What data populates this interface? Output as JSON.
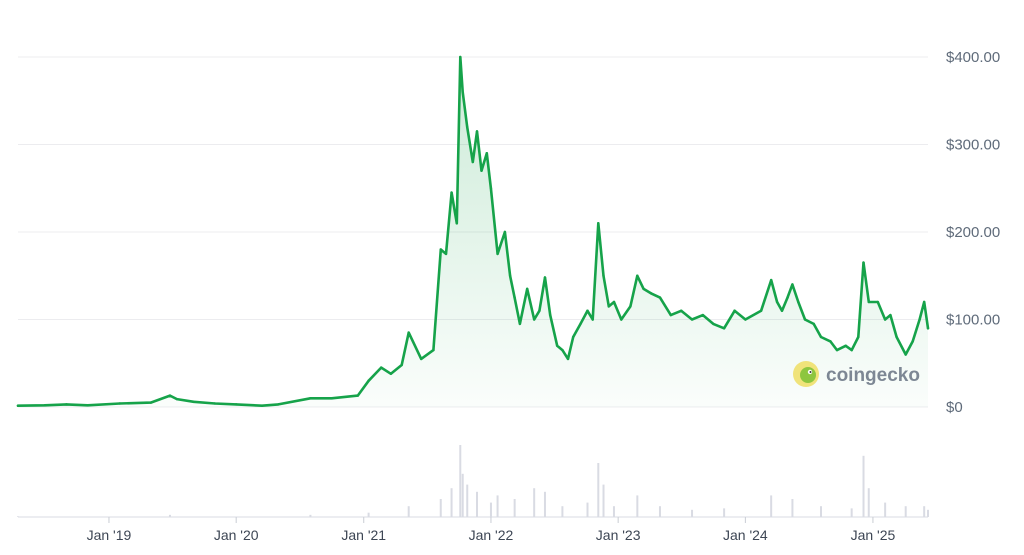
{
  "chart_data": {
    "type": "area",
    "y_axis": {
      "ticks": [
        {
          "value": 0,
          "label": "$0"
        },
        {
          "value": 100,
          "label": "$100.00"
        },
        {
          "value": 200,
          "label": "$200.00"
        },
        {
          "value": 300,
          "label": "$300.00"
        },
        {
          "value": 400,
          "label": "$400.00"
        }
      ],
      "position": "right",
      "ylim": [
        0,
        400
      ]
    },
    "x_axis": {
      "ticks": [
        {
          "date": "2019-01-01",
          "label": "Jan '19"
        },
        {
          "date": "2020-01-01",
          "label": "Jan '20"
        },
        {
          "date": "2021-01-01",
          "label": "Jan '21"
        },
        {
          "date": "2022-01-01",
          "label": "Jan '22"
        },
        {
          "date": "2023-01-01",
          "label": "Jan '23"
        },
        {
          "date": "2024-01-01",
          "label": "Jan '24"
        },
        {
          "date": "2025-01-01",
          "label": "Jan '25"
        }
      ],
      "xlim": [
        "2018-04-15",
        "2025-06-08"
      ]
    },
    "grid": true,
    "legend": "none",
    "price_series": {
      "color": "#16a34a",
      "points": [
        [
          "2018-04-15",
          1.5
        ],
        [
          "2018-07-01",
          2
        ],
        [
          "2018-09-01",
          3
        ],
        [
          "2018-11-01",
          2
        ],
        [
          "2019-02-01",
          4
        ],
        [
          "2019-05-01",
          5
        ],
        [
          "2019-06-25",
          13
        ],
        [
          "2019-07-15",
          9
        ],
        [
          "2019-09-01",
          6
        ],
        [
          "2019-11-01",
          4
        ],
        [
          "2020-01-01",
          3
        ],
        [
          "2020-03-15",
          1.5
        ],
        [
          "2020-05-01",
          3
        ],
        [
          "2020-08-01",
          10
        ],
        [
          "2020-10-01",
          10
        ],
        [
          "2020-12-15",
          13
        ],
        [
          "2021-01-15",
          30
        ],
        [
          "2021-02-20",
          45
        ],
        [
          "2021-03-20",
          38
        ],
        [
          "2021-04-20",
          48
        ],
        [
          "2021-05-10",
          85
        ],
        [
          "2021-06-15",
          55
        ],
        [
          "2021-07-20",
          65
        ],
        [
          "2021-08-10",
          180
        ],
        [
          "2021-08-25",
          175
        ],
        [
          "2021-09-10",
          245
        ],
        [
          "2021-09-25",
          210
        ],
        [
          "2021-10-05",
          400
        ],
        [
          "2021-10-12",
          360
        ],
        [
          "2021-10-25",
          320
        ],
        [
          "2021-11-10",
          280
        ],
        [
          "2021-11-22",
          315
        ],
        [
          "2021-12-05",
          270
        ],
        [
          "2021-12-20",
          290
        ],
        [
          "2022-01-01",
          250
        ],
        [
          "2022-01-20",
          175
        ],
        [
          "2022-02-10",
          200
        ],
        [
          "2022-02-25",
          150
        ],
        [
          "2022-03-10",
          125
        ],
        [
          "2022-03-25",
          95
        ],
        [
          "2022-04-15",
          135
        ],
        [
          "2022-05-05",
          100
        ],
        [
          "2022-05-20",
          110
        ],
        [
          "2022-06-05",
          148
        ],
        [
          "2022-06-20",
          105
        ],
        [
          "2022-07-10",
          70
        ],
        [
          "2022-07-25",
          65
        ],
        [
          "2022-08-10",
          55
        ],
        [
          "2022-08-25",
          80
        ],
        [
          "2022-09-15",
          95
        ],
        [
          "2022-10-05",
          110
        ],
        [
          "2022-10-20",
          100
        ],
        [
          "2022-11-05",
          210
        ],
        [
          "2022-11-20",
          150
        ],
        [
          "2022-12-05",
          115
        ],
        [
          "2022-12-20",
          120
        ],
        [
          "2023-01-10",
          100
        ],
        [
          "2023-02-05",
          115
        ],
        [
          "2023-02-25",
          150
        ],
        [
          "2023-03-15",
          135
        ],
        [
          "2023-04-05",
          130
        ],
        [
          "2023-05-01",
          125
        ],
        [
          "2023-06-01",
          105
        ],
        [
          "2023-07-01",
          110
        ],
        [
          "2023-08-01",
          100
        ],
        [
          "2023-09-01",
          105
        ],
        [
          "2023-10-01",
          95
        ],
        [
          "2023-11-01",
          90
        ],
        [
          "2023-12-01",
          110
        ],
        [
          "2024-01-01",
          100
        ],
        [
          "2024-02-15",
          110
        ],
        [
          "2024-03-15",
          145
        ],
        [
          "2024-04-01",
          120
        ],
        [
          "2024-04-15",
          110
        ],
        [
          "2024-05-01",
          125
        ],
        [
          "2024-05-15",
          140
        ],
        [
          "2024-06-01",
          120
        ],
        [
          "2024-06-20",
          100
        ],
        [
          "2024-07-15",
          95
        ],
        [
          "2024-08-05",
          80
        ],
        [
          "2024-09-01",
          75
        ],
        [
          "2024-09-20",
          65
        ],
        [
          "2024-10-15",
          70
        ],
        [
          "2024-11-01",
          65
        ],
        [
          "2024-11-20",
          80
        ],
        [
          "2024-12-05",
          165
        ],
        [
          "2024-12-20",
          120
        ],
        [
          "2025-01-15",
          120
        ],
        [
          "2025-02-05",
          100
        ],
        [
          "2025-02-20",
          105
        ],
        [
          "2025-03-10",
          80
        ],
        [
          "2025-04-05",
          60
        ],
        [
          "2025-04-25",
          75
        ],
        [
          "2025-05-15",
          100
        ],
        [
          "2025-05-28",
          120
        ],
        [
          "2025-06-08",
          90
        ]
      ]
    },
    "volume_series": {
      "color": "#d9dbe3",
      "scale_max": 100,
      "points": [
        [
          "2018-04-15",
          1
        ],
        [
          "2019-06-25",
          3
        ],
        [
          "2020-08-01",
          3
        ],
        [
          "2021-01-15",
          6
        ],
        [
          "2021-05-10",
          15
        ],
        [
          "2021-08-10",
          25
        ],
        [
          "2021-09-10",
          40
        ],
        [
          "2021-10-05",
          100
        ],
        [
          "2021-10-12",
          60
        ],
        [
          "2021-10-25",
          45
        ],
        [
          "2021-11-22",
          35
        ],
        [
          "2022-01-01",
          20
        ],
        [
          "2022-01-20",
          30
        ],
        [
          "2022-03-10",
          25
        ],
        [
          "2022-05-05",
          40
        ],
        [
          "2022-06-05",
          35
        ],
        [
          "2022-07-25",
          15
        ],
        [
          "2022-10-05",
          20
        ],
        [
          "2022-11-05",
          75
        ],
        [
          "2022-11-20",
          45
        ],
        [
          "2022-12-20",
          15
        ],
        [
          "2023-02-25",
          30
        ],
        [
          "2023-05-01",
          15
        ],
        [
          "2023-08-01",
          10
        ],
        [
          "2023-11-01",
          12
        ],
        [
          "2024-03-15",
          30
        ],
        [
          "2024-05-15",
          25
        ],
        [
          "2024-08-05",
          15
        ],
        [
          "2024-11-01",
          12
        ],
        [
          "2024-12-05",
          85
        ],
        [
          "2024-12-20",
          40
        ],
        [
          "2025-02-05",
          20
        ],
        [
          "2025-04-05",
          15
        ],
        [
          "2025-05-28",
          15
        ],
        [
          "2025-06-08",
          10
        ]
      ]
    },
    "watermark_text": "coingecko"
  }
}
